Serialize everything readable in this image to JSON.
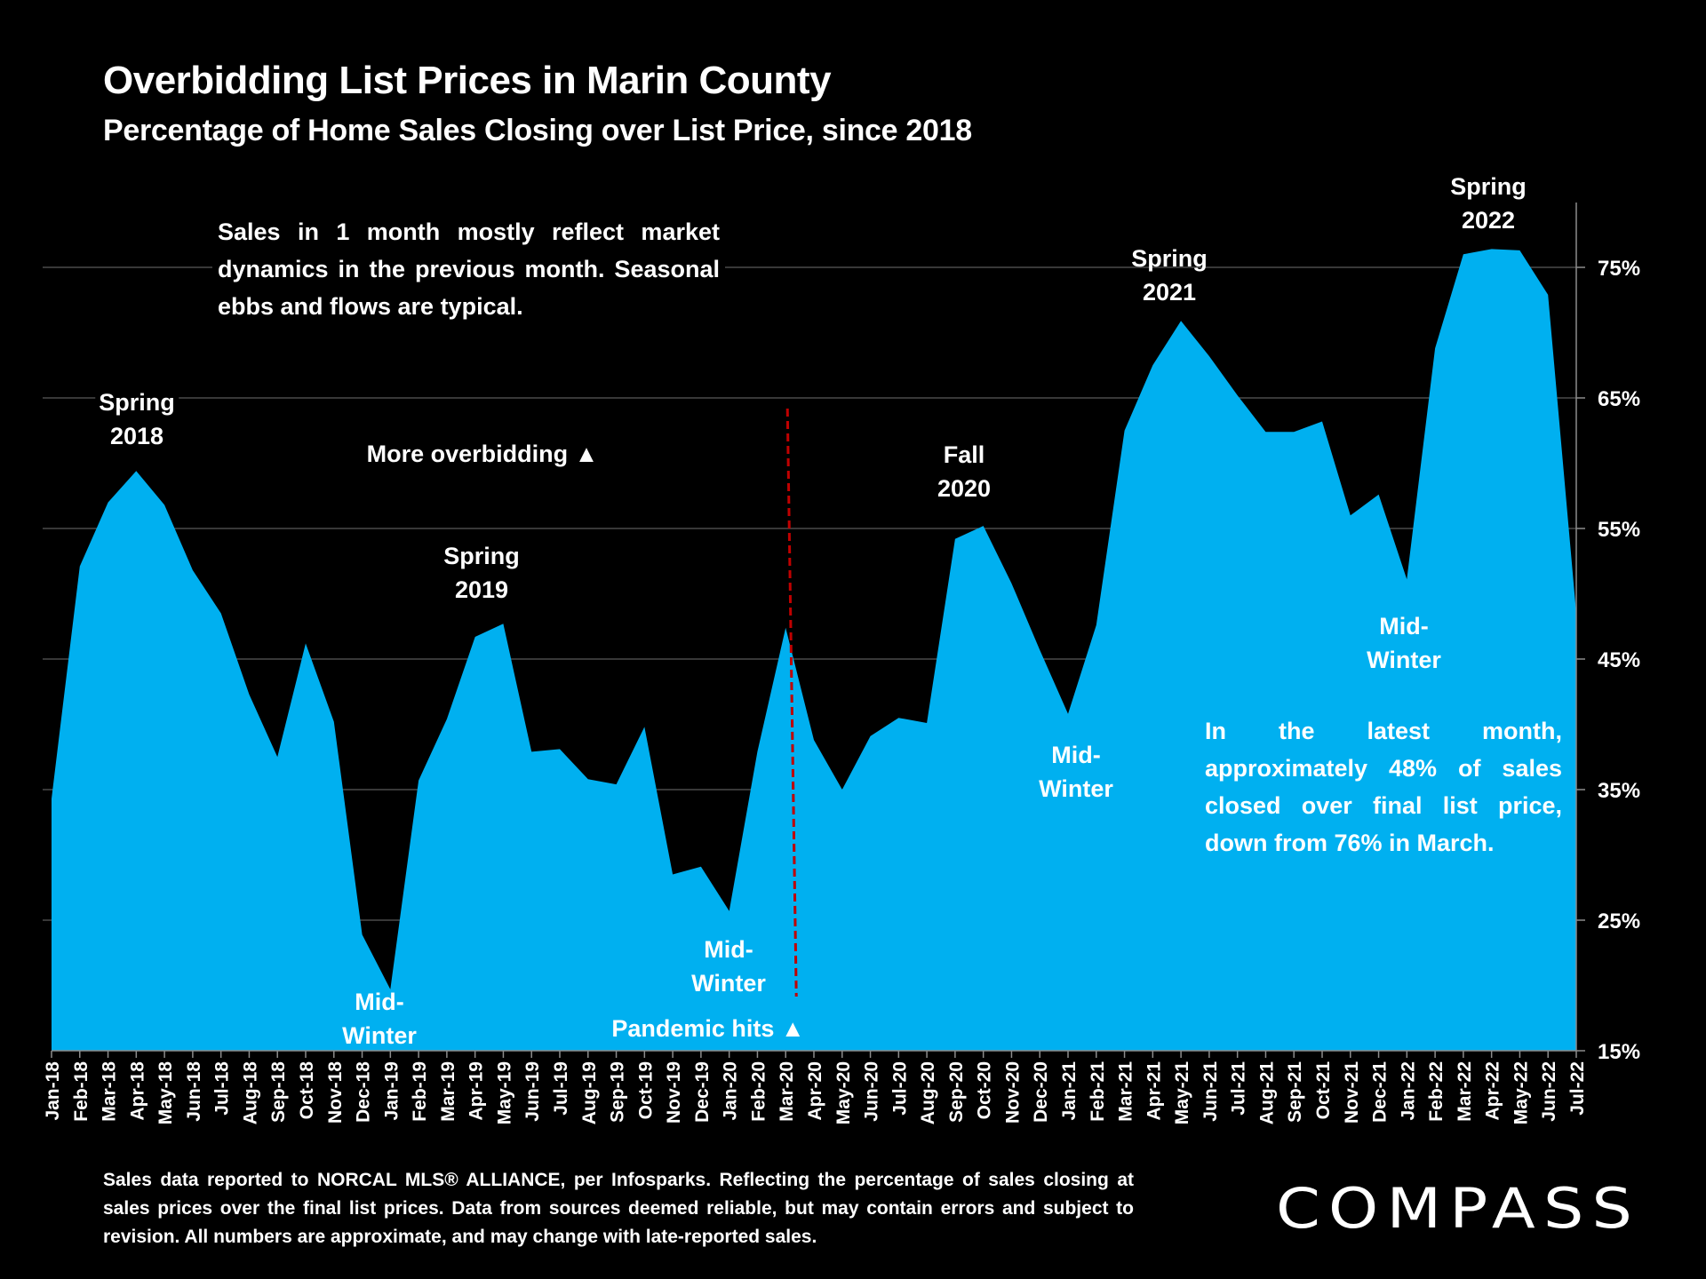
{
  "header": {
    "title": "Overbidding List Prices in Marin County",
    "subtitle": "Percentage of Home Sales Closing over List Price, since 2018"
  },
  "annotations": {
    "market_note": "Sales in 1 month mostly reflect market dynamics in the previous month. Seasonal ebbs and flows are typical.",
    "more_overbidding": "More overbidding ▲",
    "pandemic_hits": "Pandemic hits ▲",
    "latest_note": "In the latest month, approximately 48% of sales closed over final list price, down from 76% in March.",
    "spring_2018": [
      "Spring",
      "2018"
    ],
    "spring_2019": [
      "Spring",
      "2019"
    ],
    "fall_2020": [
      "Fall",
      "2020"
    ],
    "spring_2021": [
      "Spring",
      "2021"
    ],
    "spring_2022": [
      "Spring",
      "2022"
    ],
    "mid_winter_2019": [
      "Mid-",
      "Winter"
    ],
    "mid_winter_2020": [
      "Mid-",
      "Winter"
    ],
    "mid_winter_2021": [
      "Mid-",
      "Winter"
    ],
    "mid_winter_2022": [
      "Mid-",
      "Winter"
    ]
  },
  "footer": {
    "source_note": "Sales data reported to NORCAL MLS® ALLIANCE, per Infosparks. Reflecting the percentage of sales closing at sales prices over the final list prices. Data from sources deemed reliable, but may contain errors and subject to revision. All numbers are approximate, and may change with late-reported sales.",
    "brand": "COMPASS"
  },
  "colors": {
    "fill": "#00B0F0",
    "background": "#000000",
    "pandemic_line": "#C00000",
    "gridline": "#595959",
    "text": "#FFFFFF"
  },
  "chart_data": {
    "type": "area",
    "title": "Overbidding List Prices in Marin County",
    "subtitle": "Percentage of Home Sales Closing over List Price, since 2018",
    "xlabel": "",
    "ylabel": "",
    "ylim": [
      15,
      80
    ],
    "yticks": [
      15,
      25,
      35,
      45,
      55,
      65,
      75
    ],
    "ytick_labels": [
      "15%",
      "25%",
      "35%",
      "45%",
      "55%",
      "65%",
      "75%"
    ],
    "y_axis_side": "right",
    "grid": true,
    "legend": "none",
    "categories": [
      "Jan-18",
      "Feb-18",
      "Mar-18",
      "Apr-18",
      "May-18",
      "Jun-18",
      "Jul-18",
      "Aug-18",
      "Sep-18",
      "Oct-18",
      "Nov-18",
      "Dec-18",
      "Jan-19",
      "Feb-19",
      "Mar-19",
      "Apr-19",
      "May-19",
      "Jun-19",
      "Jul-19",
      "Aug-19",
      "Sep-19",
      "Oct-19",
      "Nov-19",
      "Dec-19",
      "Jan-20",
      "Feb-20",
      "Mar-20",
      "Apr-20",
      "May-20",
      "Jun-20",
      "Jul-20",
      "Aug-20",
      "Sep-20",
      "Oct-20",
      "Nov-20",
      "Dec-20",
      "Jan-21",
      "Feb-21",
      "Mar-21",
      "Apr-21",
      "May-21",
      "Jun-21",
      "Jul-21",
      "Aug-21",
      "Sep-21",
      "Oct-21",
      "Nov-21",
      "Dec-21",
      "Jan-22",
      "Feb-22",
      "Mar-22",
      "Apr-22",
      "May-22",
      "Jun-22",
      "Jul-22"
    ],
    "series": [
      {
        "name": "% of sales closing over list price",
        "values": [
          34.3,
          52.1,
          57.0,
          59.4,
          56.8,
          51.8,
          48.5,
          42.3,
          37.5,
          46.2,
          40.2,
          23.9,
          19.7,
          35.7,
          40.4,
          46.7,
          47.7,
          37.9,
          38.1,
          35.8,
          35.4,
          39.8,
          28.5,
          29.1,
          25.7,
          37.9,
          47.4,
          38.8,
          35.0,
          39.1,
          40.5,
          40.1,
          54.2,
          55.2,
          50.8,
          45.7,
          40.8,
          47.6,
          62.5,
          67.5,
          70.9,
          68.2,
          65.2,
          62.4,
          62.4,
          63.2,
          56.0,
          57.6,
          51.1,
          68.8,
          76.0,
          76.4,
          76.3,
          72.9,
          48.5
        ]
      }
    ],
    "event_marker": {
      "label": "Pandemic hits",
      "between": [
        "Mar-20",
        "Apr-20"
      ]
    }
  }
}
